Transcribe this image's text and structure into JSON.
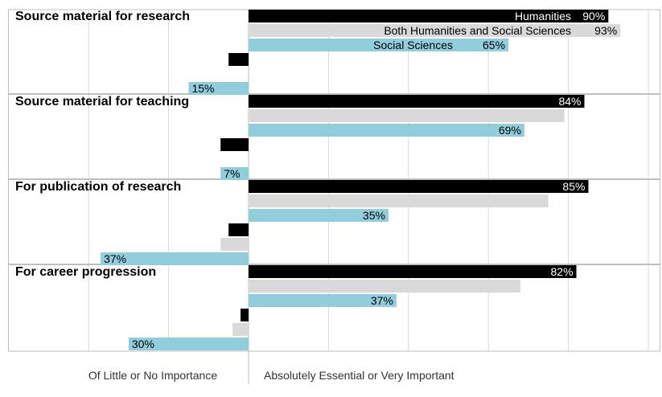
{
  "chart_data": {
    "type": "bar",
    "orientation": "horizontal-diverging",
    "series": [
      {
        "name": "Humanities",
        "color": "#000000"
      },
      {
        "name": "Both Humanities and Social Sciences",
        "color": "#d9d9d9"
      },
      {
        "name": "Social Sciences",
        "color": "#92cddc"
      }
    ],
    "legend_position": "inside-top",
    "x_axis_labels": {
      "negative": "Of Little or No Importance",
      "positive": "Absolutely Essential or Very Important"
    },
    "xlim": [
      -50,
      100
    ],
    "gridline_step": 10,
    "groups": [
      {
        "title": "Source material for research",
        "positive": [
          90,
          93,
          65
        ],
        "positive_labels": [
          "90%",
          "93%",
          "65%"
        ],
        "negative": [
          5,
          0,
          15
        ],
        "negative_labels": [
          "",
          "",
          "15%"
        ]
      },
      {
        "title": "Source material for teaching",
        "positive": [
          84,
          79,
          69
        ],
        "positive_labels": [
          "84%",
          "",
          "69%"
        ],
        "negative": [
          7,
          0,
          7
        ],
        "negative_labels": [
          "",
          "",
          "7%"
        ]
      },
      {
        "title": "For publication of research",
        "positive": [
          85,
          75,
          35
        ],
        "positive_labels": [
          "85%",
          "",
          "35%"
        ],
        "negative": [
          5,
          7,
          37
        ],
        "negative_labels": [
          "",
          "",
          "37%"
        ]
      },
      {
        "title": "For career progression",
        "positive": [
          82,
          68,
          37
        ],
        "positive_labels": [
          "82%",
          "",
          "37%"
        ],
        "negative": [
          2,
          4,
          30
        ],
        "negative_labels": [
          "",
          "",
          "30%"
        ]
      }
    ]
  }
}
